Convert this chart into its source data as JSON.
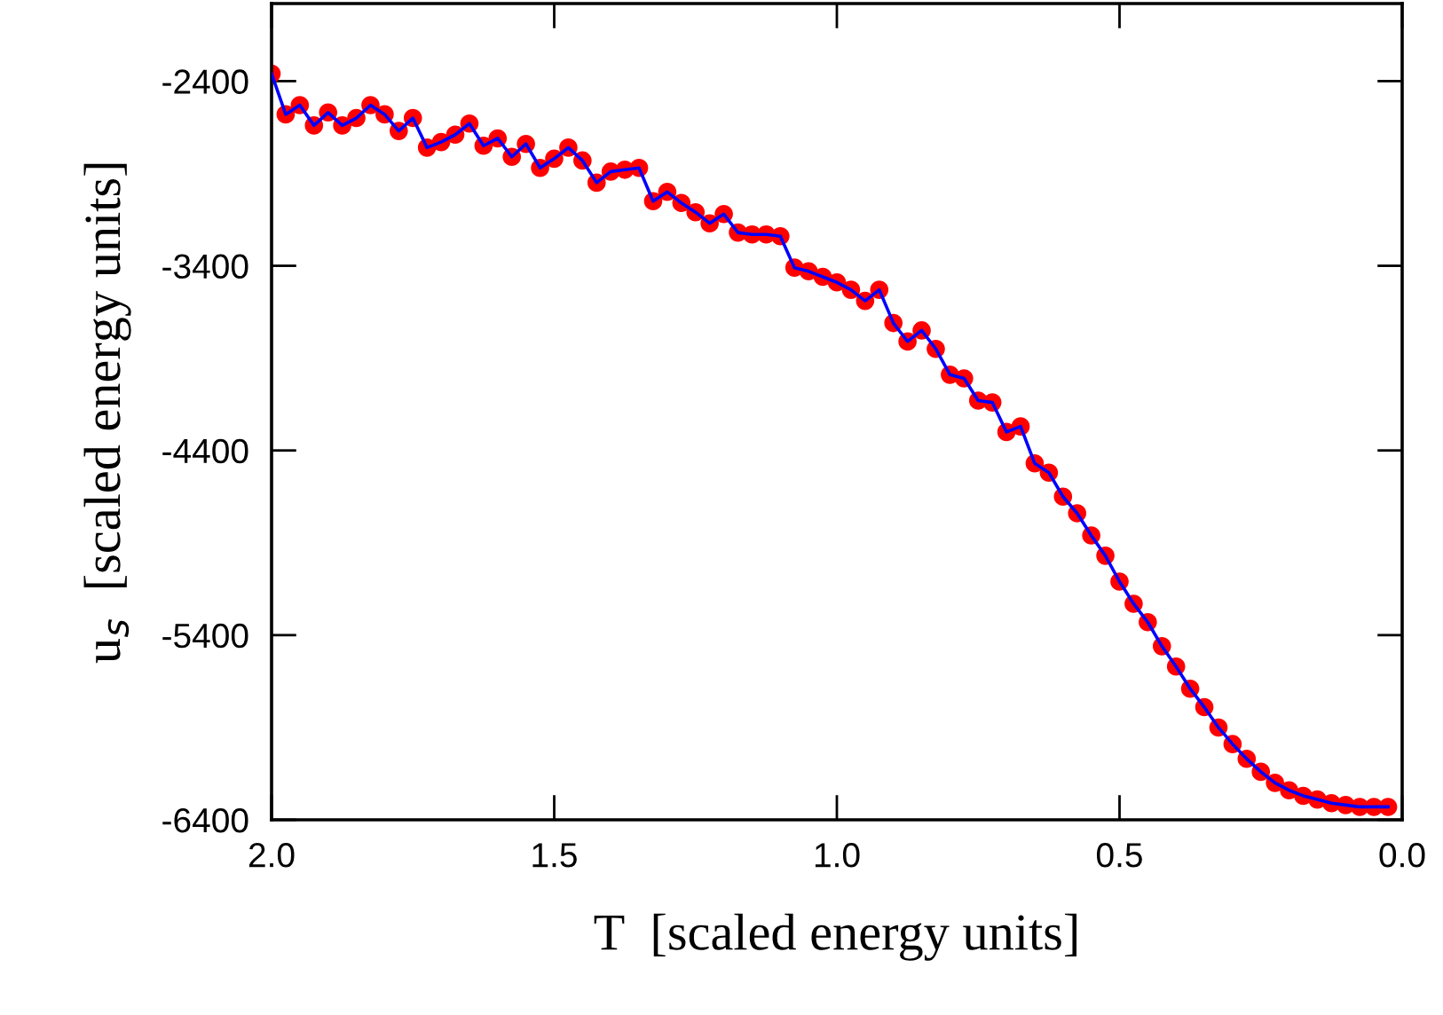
{
  "chart_data": {
    "type": "line",
    "xlabel": "T  [scaled energy units]",
    "ylabel": "u$_{s}$  [scaled energy units]",
    "x": [
      2.0,
      1.975,
      1.95,
      1.925,
      1.9,
      1.875,
      1.85,
      1.825,
      1.8,
      1.775,
      1.75,
      1.725,
      1.7,
      1.675,
      1.65,
      1.625,
      1.6,
      1.575,
      1.55,
      1.525,
      1.5,
      1.475,
      1.45,
      1.425,
      1.4,
      1.375,
      1.35,
      1.325,
      1.3,
      1.275,
      1.25,
      1.225,
      1.2,
      1.175,
      1.15,
      1.125,
      1.1,
      1.075,
      1.05,
      1.025,
      1.0,
      0.975,
      0.95,
      0.925,
      0.9,
      0.875,
      0.85,
      0.825,
      0.8,
      0.775,
      0.75,
      0.725,
      0.7,
      0.675,
      0.65,
      0.625,
      0.6,
      0.575,
      0.55,
      0.525,
      0.5,
      0.475,
      0.45,
      0.425,
      0.4,
      0.375,
      0.35,
      0.325,
      0.3,
      0.275,
      0.25,
      0.225,
      0.2,
      0.175,
      0.15,
      0.125,
      0.1,
      0.075,
      0.05,
      0.025
    ],
    "series": [
      {
        "type": "scatter",
        "color": "#ff0000",
        "marker": "circle",
        "values": [
          -2360,
          -2580,
          -2530,
          -2640,
          -2570,
          -2640,
          -2600,
          -2530,
          -2580,
          -2670,
          -2600,
          -2760,
          -2730,
          -2690,
          -2630,
          -2750,
          -2710,
          -2810,
          -2740,
          -2870,
          -2820,
          -2760,
          -2830,
          -2950,
          -2890,
          -2880,
          -2870,
          -3050,
          -3000,
          -3060,
          -3110,
          -3170,
          -3120,
          -3220,
          -3230,
          -3230,
          -3240,
          -3410,
          -3430,
          -3460,
          -3490,
          -3530,
          -3590,
          -3530,
          -3710,
          -3810,
          -3750,
          -3850,
          -3990,
          -4010,
          -4130,
          -4140,
          -4300,
          -4270,
          -4470,
          -4520,
          -4650,
          -4740,
          -4860,
          -4970,
          -5110,
          -5230,
          -5330,
          -5460,
          -5570,
          -5690,
          -5790,
          -5900,
          -5990,
          -6070,
          -6140,
          -6200,
          -6240,
          -6270,
          -6290,
          -6310,
          -6320,
          -6330,
          -6330,
          -6330
        ]
      },
      {
        "color": "#0000ff",
        "line_style": "solid",
        "values": [
          -2360,
          -2580,
          -2530,
          -2640,
          -2570,
          -2640,
          -2600,
          -2530,
          -2580,
          -2670,
          -2600,
          -2760,
          -2730,
          -2690,
          -2630,
          -2750,
          -2710,
          -2810,
          -2740,
          -2870,
          -2820,
          -2760,
          -2830,
          -2950,
          -2890,
          -2880,
          -2870,
          -3050,
          -3000,
          -3060,
          -3110,
          -3170,
          -3120,
          -3220,
          -3230,
          -3230,
          -3240,
          -3410,
          -3430,
          -3460,
          -3490,
          -3530,
          -3590,
          -3530,
          -3710,
          -3810,
          -3750,
          -3850,
          -3990,
          -4010,
          -4130,
          -4140,
          -4300,
          -4270,
          -4470,
          -4520,
          -4650,
          -4740,
          -4860,
          -4970,
          -5110,
          -5230,
          -5330,
          -5460,
          -5570,
          -5690,
          -5790,
          -5900,
          -5990,
          -6070,
          -6140,
          -6200,
          -6240,
          -6270,
          -6290,
          -6310,
          -6320,
          -6330,
          -6330,
          -6330
        ]
      }
    ],
    "xlim": [
      2.0,
      0.0
    ],
    "xticks": [
      {
        "value": 2.0,
        "label": "2.0"
      },
      {
        "value": 1.5,
        "label": "1.5"
      },
      {
        "value": 1.0,
        "label": "1.0"
      },
      {
        "value": 0.5,
        "label": "0.5"
      },
      {
        "value": 0.0,
        "label": "0.0"
      }
    ],
    "ylim": [
      -6400,
      -1980
    ],
    "yticks": [
      -6400,
      -5400,
      -4400,
      -3400,
      -2400
    ],
    "grid": false,
    "legend": false
  }
}
